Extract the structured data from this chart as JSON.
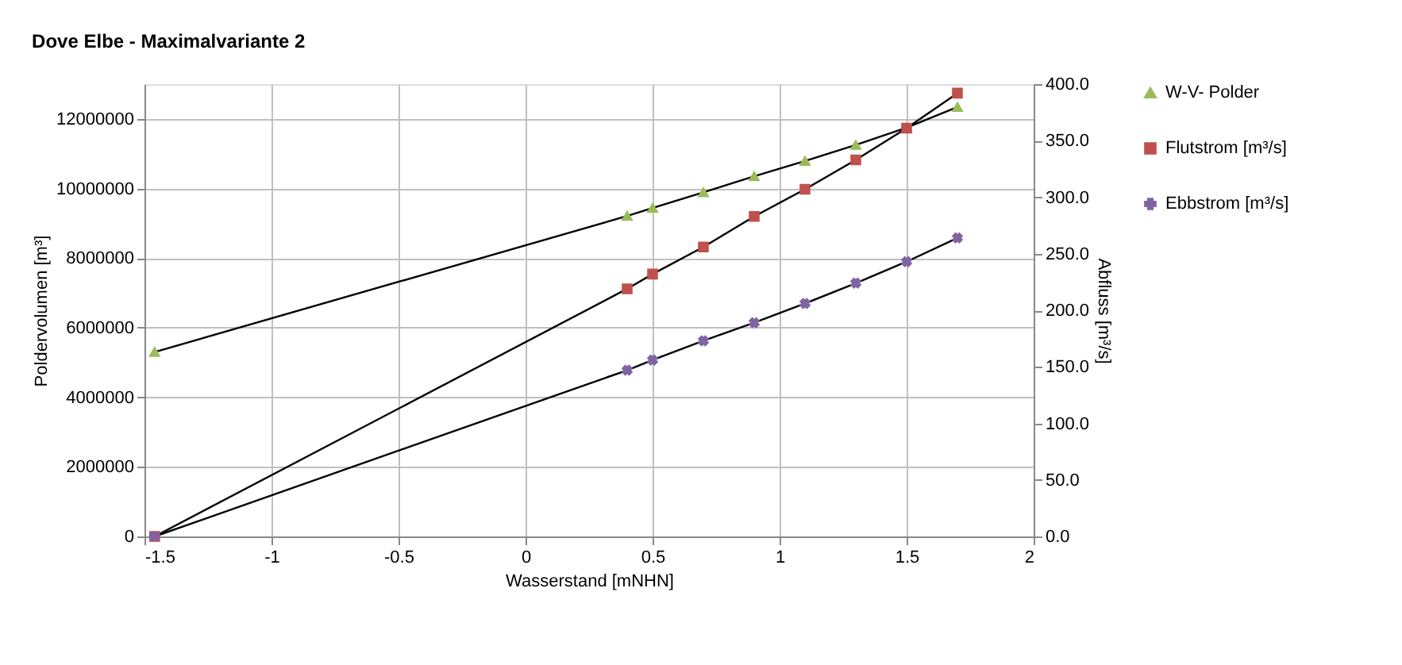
{
  "chart_data": {
    "type": "line",
    "title": "Dove Elbe - Maximalvariante 2",
    "xlabel": "Wasserstand [mNHN]",
    "ylabel": "Poldervolumen [m³]",
    "y2label": "Abfluss [m³/s]",
    "x": [
      -1.46,
      0.4,
      0.5,
      0.7,
      0.9,
      1.1,
      1.3,
      1.5,
      1.7
    ],
    "series": [
      {
        "name": "W-V- Polder",
        "color": "#9bbb59",
        "marker": "triangle",
        "values": [
          5300000,
          9210000,
          9440000,
          9890000,
          10350000,
          10790000,
          11250000,
          11750000,
          12340000
        ]
      },
      {
        "name": "Flutstrom [m³/s]",
        "color": "#c0504d",
        "marker": "square",
        "axis": "y2",
        "values": [
          0,
          219,
          232,
          256,
          283,
          307,
          333,
          361,
          392
        ]
      },
      {
        "name": "Ebbstrom [m³/s]",
        "color": "#8064a2",
        "marker": "cross",
        "axis": "y2",
        "values": [
          0,
          147,
          156,
          173,
          189,
          206,
          224,
          243,
          264
        ]
      }
    ],
    "xlim": [
      -1.5,
      2
    ],
    "xticks": [
      -1.5,
      -1,
      -0.5,
      0,
      0.5,
      1,
      1.5,
      2
    ],
    "ylim": [
      0,
      13000000
    ],
    "yticks": [
      0,
      2000000,
      4000000,
      6000000,
      8000000,
      10000000,
      12000000
    ],
    "y2lim": [
      0,
      400
    ],
    "y2ticks": [
      {
        "value": 0,
        "label": "0.0"
      },
      {
        "value": 50,
        "label": "50.0"
      },
      {
        "value": 100,
        "label": "100.0"
      },
      {
        "value": 150,
        "label": "150.0"
      },
      {
        "value": 200,
        "label": "200.0"
      },
      {
        "value": 250,
        "label": "250.0"
      },
      {
        "value": 300,
        "label": "300.0"
      },
      {
        "value": 350,
        "label": "350.0"
      },
      {
        "value": 400,
        "label": "400.0"
      }
    ],
    "grid": true,
    "legend": "right",
    "line_style": "solid"
  }
}
